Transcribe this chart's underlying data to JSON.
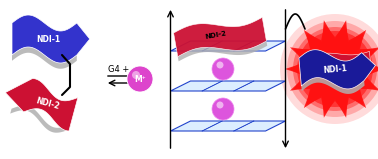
{
  "bg_color": "#ffffff",
  "ndi1_blue": "#3333cc",
  "ndi2_red": "#cc1133",
  "ndi1_label": "NDI-1",
  "ndi2_label": "NDI-2",
  "g4_label": "G4 +",
  "m_label": "M⁺",
  "grid_color": "#2244cc",
  "grid_face": "#ddeeff",
  "sphere_color": "#dd55dd",
  "arrow_color": "#000000",
  "glow_color": "#ff1111",
  "ndi1_dark": "#1a1a99",
  "silver": "#b0b0b0"
}
